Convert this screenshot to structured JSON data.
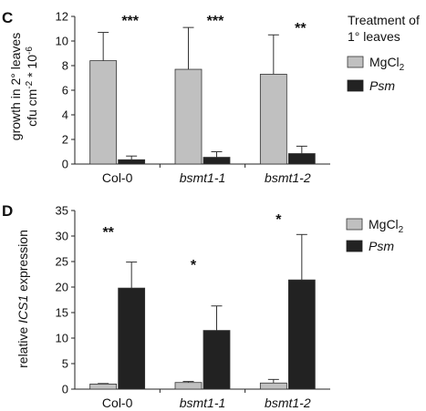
{
  "chart_data": [
    {
      "panel_label": "C",
      "type": "bar",
      "ylabel_line1": "growth in 2° leaves",
      "ylabel_line2": "cfu cm",
      "ylabel_sup1": "-2",
      "ylabel_mid": " * 10",
      "ylabel_sup2": "-6",
      "ylim": [
        0,
        12
      ],
      "yticks": [
        "0",
        "2",
        "4",
        "6",
        "8",
        "10",
        "12"
      ],
      "categories": [
        "Col-0",
        "bsmt1-1",
        "bsmt1-2"
      ],
      "categories_italic": [
        false,
        true,
        true
      ],
      "significance": [
        "***",
        "***",
        "**"
      ],
      "legend_title_line1": "Treatment of",
      "legend_title_line2": "1° leaves",
      "legend_placement": "right",
      "series": [
        {
          "name": "MgCl",
          "name_sub": "2",
          "color": "#c0c0c0",
          "values": [
            8.4,
            7.7,
            7.3
          ],
          "errors": [
            2.3,
            3.4,
            3.2
          ]
        },
        {
          "name": "Psm",
          "italic": true,
          "color": "#222222",
          "values": [
            0.35,
            0.55,
            0.85
          ],
          "errors": [
            0.3,
            0.45,
            0.6
          ]
        }
      ]
    },
    {
      "panel_label": "D",
      "type": "bar",
      "ylabel_pre": "relative ",
      "ylabel_italic": "ICS1",
      "ylabel_post": " expression",
      "ylim": [
        0,
        35
      ],
      "yticks": [
        "0",
        "5",
        "10",
        "15",
        "20",
        "25",
        "30",
        "35"
      ],
      "categories": [
        "Col-0",
        "bsmt1-1",
        "bsmt1-2"
      ],
      "categories_italic": [
        false,
        true,
        true
      ],
      "significance": [
        "**",
        "*",
        "*"
      ],
      "legend_placement": "top-right",
      "series": [
        {
          "name": "MgCl",
          "name_sub": "2",
          "color": "#c0c0c0",
          "values": [
            1.0,
            1.3,
            1.2
          ],
          "errors": [
            0.1,
            0.2,
            0.7
          ]
        },
        {
          "name": "Psm",
          "italic": true,
          "color": "#222222",
          "values": [
            19.8,
            11.5,
            21.4
          ],
          "errors": [
            5.1,
            4.8,
            8.9
          ]
        }
      ]
    }
  ]
}
